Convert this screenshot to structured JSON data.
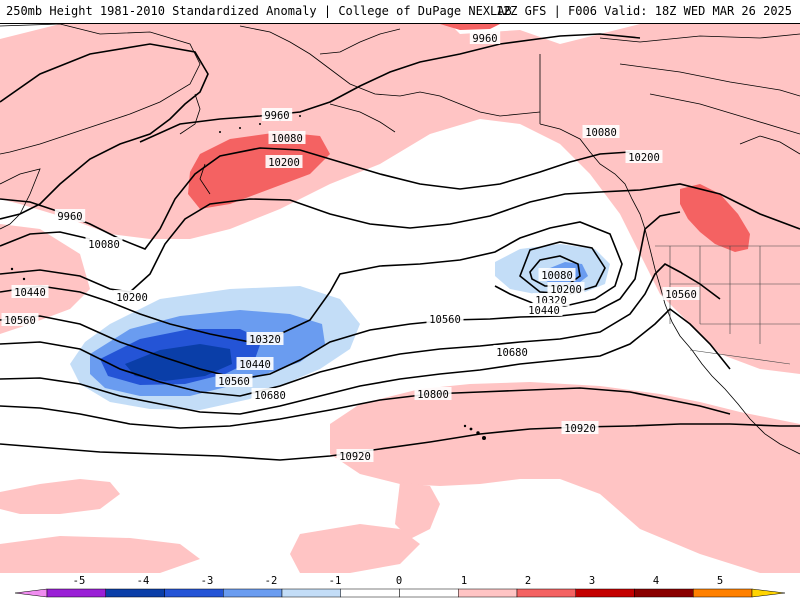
{
  "header": {
    "title": "250mb Height 1981-2010 Standardized Anomaly | College of DuPage NEXLAB",
    "run_info": "12Z GFS | F006 Valid: 18Z WED MAR 26 2025"
  },
  "colors": {
    "pos1": "#ffc4c4",
    "pos2": "#f46262",
    "neg1": "#c3ddf7",
    "neg2": "#6a9cf0",
    "neg3": "#2454d6",
    "neg4": "#0a3ea8",
    "land": "#000000",
    "contour": "#000000"
  },
  "contour_labels": [
    {
      "id": "l9960a",
      "text": "9960"
    },
    {
      "id": "l9960b",
      "text": "9960"
    },
    {
      "id": "l9960c",
      "text": "9960"
    },
    {
      "id": "l10080a",
      "text": "10080"
    },
    {
      "id": "l10080b",
      "text": "10080"
    },
    {
      "id": "l10080c",
      "text": "10080"
    },
    {
      "id": "l10080d",
      "text": "10080"
    },
    {
      "id": "l10200a",
      "text": "10200"
    },
    {
      "id": "l10200b",
      "text": "10200"
    },
    {
      "id": "l10200c",
      "text": "10200"
    },
    {
      "id": "l10200d",
      "text": "10200"
    },
    {
      "id": "l10320a",
      "text": "10320"
    },
    {
      "id": "l10320b",
      "text": "10320"
    },
    {
      "id": "l10440a",
      "text": "10440"
    },
    {
      "id": "l10440b",
      "text": "10440"
    },
    {
      "id": "l10440c",
      "text": "10440"
    },
    {
      "id": "l10560a",
      "text": "10560"
    },
    {
      "id": "l10560b",
      "text": "10560"
    },
    {
      "id": "l10560c",
      "text": "10560"
    },
    {
      "id": "l10560d",
      "text": "10560"
    },
    {
      "id": "l10680a",
      "text": "10680"
    },
    {
      "id": "l10680b",
      "text": "10680"
    },
    {
      "id": "l10800a",
      "text": "10800"
    },
    {
      "id": "l10920a",
      "text": "10920"
    },
    {
      "id": "l10920b",
      "text": "10920"
    }
  ],
  "colorbar": {
    "ticks": [
      "-5",
      "-4",
      "-3",
      "-2",
      "-1",
      "0",
      "1",
      "2",
      "3",
      "4",
      "5"
    ],
    "bins": [
      {
        "color": "#f08cf0"
      },
      {
        "color": "#9a1fd6"
      },
      {
        "color": "#0a3ea8"
      },
      {
        "color": "#2454d6"
      },
      {
        "color": "#6a9cf0"
      },
      {
        "color": "#c3ddf7"
      },
      {
        "color": "#ffffff"
      },
      {
        "color": "#ffffff"
      },
      {
        "color": "#ffc4c4"
      },
      {
        "color": "#f46262"
      },
      {
        "color": "#c40000"
      },
      {
        "color": "#8a0000"
      },
      {
        "color": "#ff8000"
      },
      {
        "color": "#ffd400"
      }
    ]
  }
}
